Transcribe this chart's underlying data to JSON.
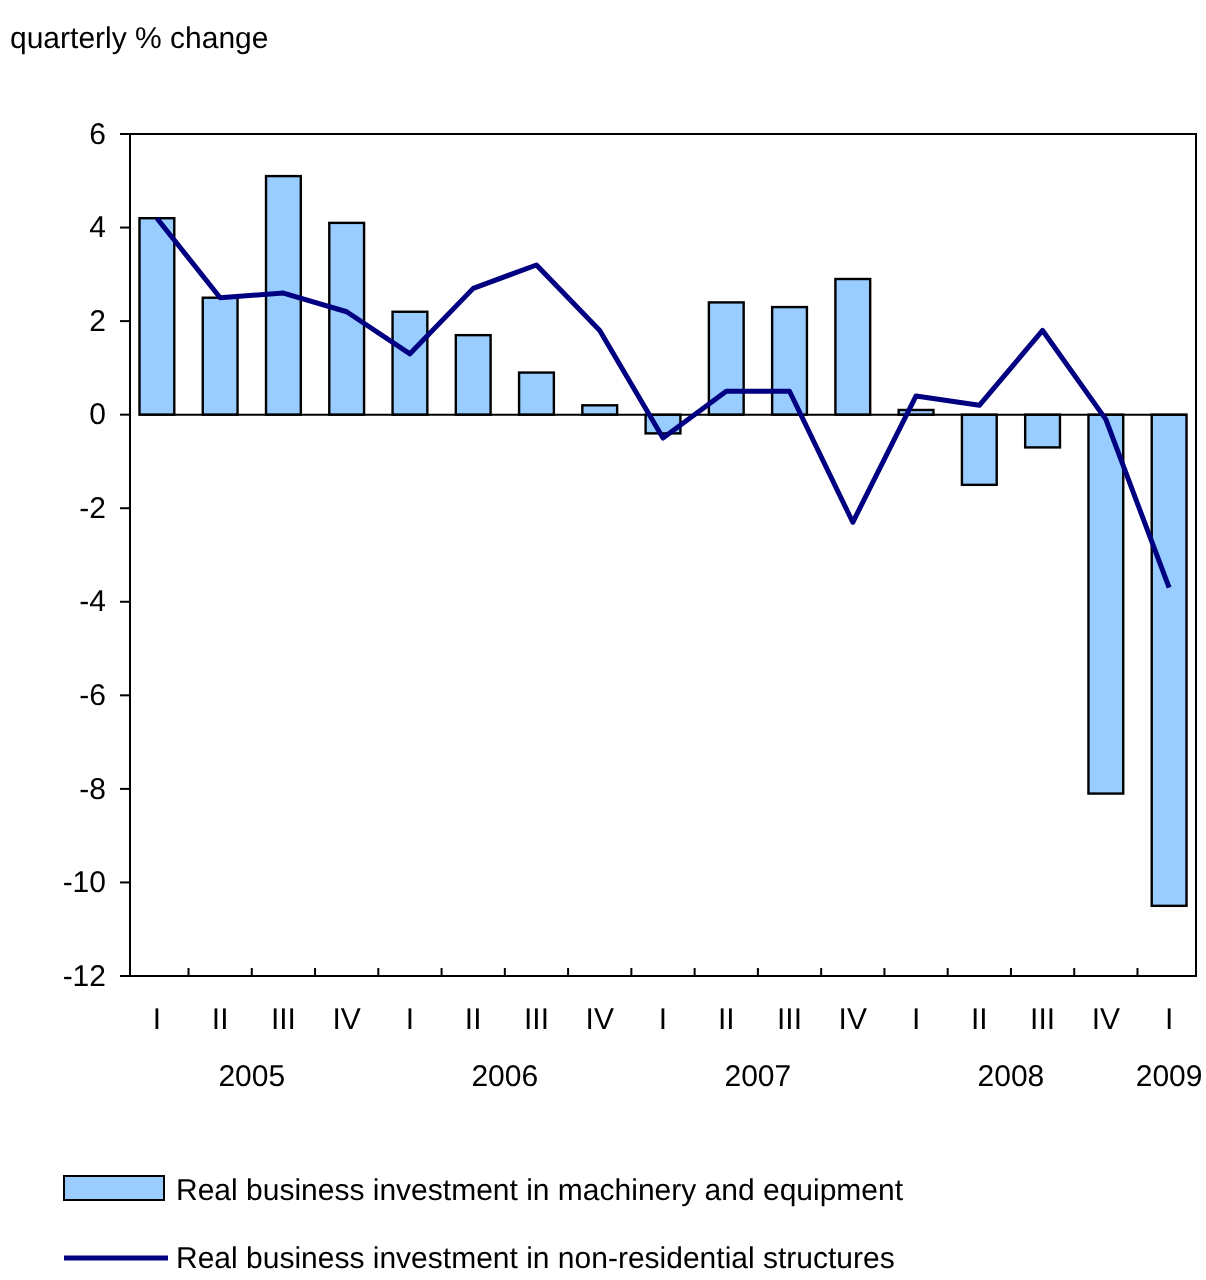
{
  "chart_data": {
    "type": "bar",
    "ylabel": "quarterly % change",
    "categories": [
      "I",
      "II",
      "III",
      "IV",
      "I",
      "II",
      "III",
      "IV",
      "I",
      "II",
      "III",
      "IV",
      "I",
      "II",
      "III",
      "IV",
      "I"
    ],
    "series": [
      {
        "name": "Real business investment in machinery and equipment",
        "type": "bar",
        "color": "#99ccff",
        "values": [
          4.2,
          2.5,
          5.1,
          4.1,
          2.2,
          1.7,
          0.9,
          0.2,
          -0.4,
          2.4,
          2.3,
          2.9,
          0.1,
          -1.5,
          -0.7,
          -8.1,
          -10.5
        ]
      },
      {
        "name": "Real business investment in non-residential structures",
        "type": "line",
        "color": "#000080",
        "values": [
          4.2,
          2.5,
          2.6,
          2.2,
          1.3,
          2.7,
          3.2,
          1.8,
          -0.5,
          0.5,
          0.5,
          -2.3,
          0.4,
          0.2,
          1.8,
          -0.1,
          -3.7
        ]
      }
    ],
    "ylim": [
      -12,
      6
    ],
    "yticks": [
      -12,
      -10,
      -8,
      -6,
      -4,
      -2,
      0,
      2,
      4,
      6
    ],
    "annotations": [
      "2005",
      "2006",
      "2007",
      "2008",
      "2009"
    ],
    "ref_lines": [
      {
        "axis": "y",
        "value": 0,
        "color": "#000000"
      }
    ],
    "grid": false,
    "legend": "bottom",
    "marker": "none",
    "line_style": "solid"
  }
}
